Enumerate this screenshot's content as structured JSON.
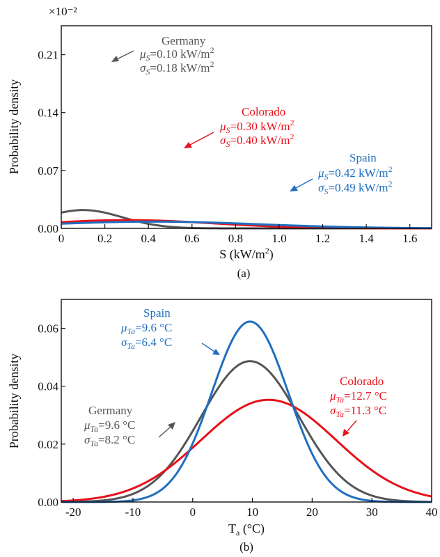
{
  "chart_data": [
    {
      "type": "line",
      "caption": "(a)",
      "xlabel": "S (kW/m²)",
      "ylabel": "Probability density",
      "y_multiplier": "×10⁻²",
      "xlim": [
        0,
        1.7
      ],
      "ylim": [
        0,
        0.245
      ],
      "xticks": [
        0,
        0.2,
        0.4,
        0.6,
        0.8,
        1.0,
        1.2,
        1.4,
        1.6
      ],
      "xtick_labels": [
        "0",
        "0.2",
        "0.4",
        "0.6",
        "0.8",
        "1.0",
        "1.2",
        "1.4",
        "1.6"
      ],
      "yticks": [
        0,
        0.07,
        0.14,
        0.21
      ],
      "ytick_labels": [
        "0.00",
        "0.07",
        "0.14",
        "0.21"
      ],
      "grid": false,
      "legend": "none",
      "series": [
        {
          "name": "Germany",
          "mu": 0.1,
          "sigma": 0.18,
          "color": "#555559",
          "label": "Germany",
          "mu_text": "=0.10 kW/m",
          "sigma_text": "=0.18 kW/m"
        },
        {
          "name": "Colorado",
          "mu": 0.3,
          "sigma": 0.4,
          "color": "#e8101a",
          "label": "Colorado",
          "mu_text": "=0.30 kW/m",
          "sigma_text": "=0.40 kW/m"
        },
        {
          "name": "Spain",
          "mu": 0.42,
          "sigma": 0.49,
          "color": "#1f6fbf",
          "label": "Spain",
          "mu_text": "=0.42 kW/m",
          "sigma_text": "=0.49 kW/m"
        }
      ]
    },
    {
      "type": "line",
      "caption": "(b)",
      "xlabel": "Ta (°C)",
      "ylabel": "Probability density",
      "xlim": [
        -22,
        40
      ],
      "ylim": [
        0,
        0.07
      ],
      "xticks": [
        -20,
        -10,
        0,
        10,
        20,
        30,
        40
      ],
      "xtick_labels": [
        "-20",
        "-10",
        "0",
        "10",
        "20",
        "30",
        "40"
      ],
      "yticks": [
        0,
        0.02,
        0.04,
        0.06
      ],
      "ytick_labels": [
        "0.00",
        "0.02",
        "0.04",
        "0.06"
      ],
      "grid": false,
      "legend": "none",
      "series": [
        {
          "name": "Germany",
          "mu": 9.6,
          "sigma": 8.2,
          "color": "#555559",
          "label": "Germany",
          "mu_text": "=9.6 °C",
          "sigma_text": "=8.2 °C"
        },
        {
          "name": "Colorado",
          "mu": 12.7,
          "sigma": 11.3,
          "color": "#e8101a",
          "label": "Colorado",
          "mu_text": "=12.7 °C",
          "sigma_text": "=11.3 °C"
        },
        {
          "name": "Spain",
          "mu": 9.6,
          "sigma": 6.4,
          "color": "#1f6fbf",
          "label": "Spain",
          "mu_text": "=9.6 °C",
          "sigma_text": "=6.4 °C"
        }
      ]
    }
  ]
}
